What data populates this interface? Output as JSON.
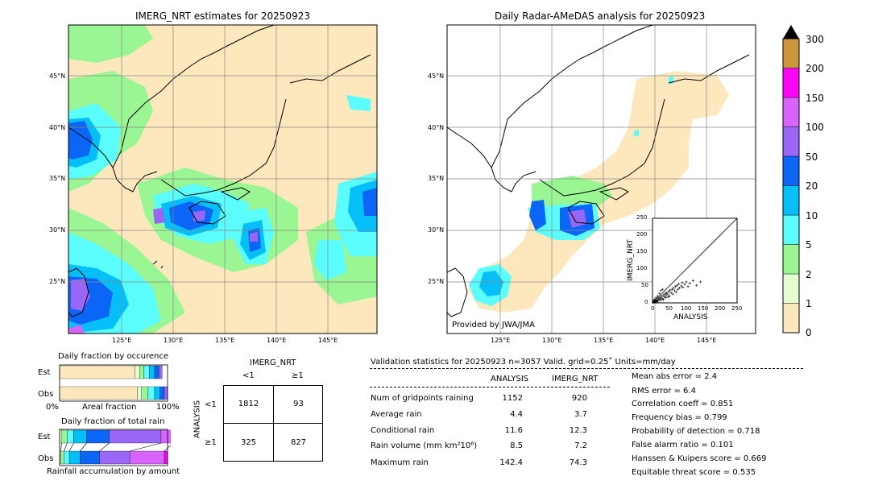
{
  "left_map": {
    "title": "IMERG_NRT estimates for 20250923",
    "lat_labels": [
      "45°N",
      "40°N",
      "35°N",
      "30°N",
      "25°N"
    ],
    "lon_labels": [
      "125°E",
      "130°E",
      "135°E",
      "140°E",
      "145°E"
    ]
  },
  "right_map": {
    "title": "Daily Radar-AMeDAS analysis for 20250923",
    "lat_labels": [
      "45°N",
      "40°N",
      "35°N",
      "30°N",
      "25°N"
    ],
    "lon_labels": [
      "125°E",
      "130°E",
      "135°E",
      "140°E",
      "145°E"
    ],
    "credit": "Provided by JWA/JMA"
  },
  "scatter_inset": {
    "ylabel": "IMERG_NRT",
    "xlabel": "ANALYSIS",
    "ticks": [
      "0",
      "25",
      "50",
      "75",
      "100",
      "125",
      "150",
      "175",
      "200",
      "225",
      "250"
    ],
    "xticks": [
      "0",
      "50",
      "100",
      "150",
      "200",
      "250"
    ]
  },
  "colorbar": {
    "labels": [
      "0",
      "1",
      "2",
      "5",
      "10",
      "20",
      "50",
      "100",
      "150",
      "200",
      "300"
    ],
    "colors": [
      "#fde8be",
      "#e6fcd3",
      "#99f692",
      "#5afcfc",
      "#06bef8",
      "#0b66f8",
      "#9966f5",
      "#d964f9",
      "#fd04f8",
      "#cb963c"
    ],
    "extend_color": "#000000"
  },
  "occurrence": {
    "title": "Daily fraction by occurence",
    "row_labels": [
      "Est",
      "Obs"
    ],
    "axis_left": "0%",
    "axis_mid": "Areal fraction",
    "axis_right": "100%",
    "est_fractions": [
      0.7,
      0.04,
      0.04,
      0.05,
      0.05,
      0.04,
      0.03
    ],
    "obs_fractions": [
      0.72,
      0.04,
      0.06,
      0.06,
      0.05,
      0.04,
      0.03
    ],
    "segment_colors": [
      "#fde8be",
      "#e6fcd3",
      "#99f692",
      "#5afcfc",
      "#06bef8",
      "#0b66f8",
      "#9966f5"
    ]
  },
  "accumulation": {
    "title": "Daily fraction of total rain",
    "row_labels": [
      "Est",
      "Obs"
    ],
    "footer": "Rainfall accumulation by amount",
    "est_fractions": [
      0.02,
      0.05,
      0.06,
      0.12,
      0.21,
      0.48,
      0.11
    ],
    "obs_fractions": [
      0.01,
      0.03,
      0.05,
      0.1,
      0.18,
      0.28,
      0.32,
      0.03
    ],
    "segment_colors": [
      "#e6fcd3",
      "#99f692",
      "#5afcfc",
      "#06bef8",
      "#0b66f8",
      "#9966f5",
      "#d964f9",
      "#fd04f8"
    ]
  },
  "contingency": {
    "col_title": "IMERG_NRT",
    "col_labels": [
      "<1",
      "≥1"
    ],
    "row_title": "ANALYSIS",
    "row_labels": [
      "<1",
      "≥1"
    ],
    "cells": [
      [
        "1812",
        "93"
      ],
      [
        "325",
        "827"
      ]
    ]
  },
  "validation": {
    "header": "Validation statistics for 20250923  n=3057 Valid. grid=0.25˚ Units=mm/day",
    "col_analysis": "ANALYSIS",
    "col_imerg": "IMERG_NRT",
    "rows": [
      {
        "label": "Num of gridpoints raining",
        "analysis": "1152",
        "imerg": "920"
      },
      {
        "label": "Average rain",
        "analysis": "4.4",
        "imerg": "3.7"
      },
      {
        "label": "Conditional rain",
        "analysis": "11.6",
        "imerg": "12.3"
      },
      {
        "label": "Rain volume (mm km²10⁶)",
        "analysis": "8.5",
        "imerg": "7.2"
      },
      {
        "label": "Maximum rain",
        "analysis": "142.4",
        "imerg": "74.3"
      }
    ],
    "scores": [
      "Mean abs error =    2.4",
      "RMS error =    6.4",
      "Correlation coeff =  0.851",
      "Frequency bias =  0.799",
      "Probability of detection =  0.718",
      "False alarm ratio =  0.101",
      "Hanssen & Kuipers score =  0.669",
      "Equitable threat score =  0.535"
    ]
  }
}
